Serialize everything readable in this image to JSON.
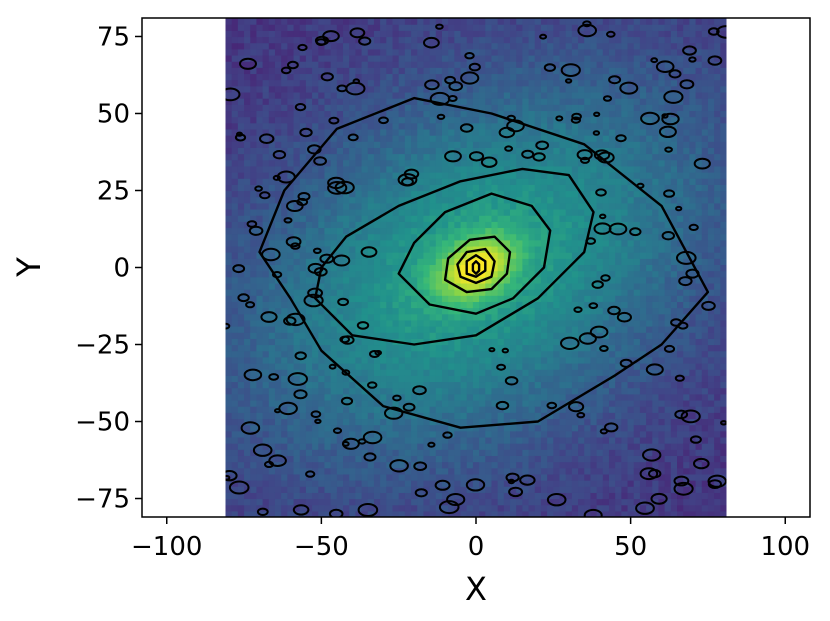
{
  "chart_data": {
    "type": "heatmap",
    "title": "",
    "xlabel": "X",
    "ylabel": "Y",
    "xlim": [
      -108,
      108
    ],
    "ylim": [
      -81,
      81
    ],
    "data_extent": {
      "x": [
        -81,
        81
      ],
      "y": [
        -81,
        81
      ]
    },
    "x_ticks": [
      -100,
      -50,
      0,
      50,
      100
    ],
    "x_tick_labels": [
      "−100",
      "−50",
      "0",
      "50",
      "100"
    ],
    "y_ticks": [
      -75,
      -50,
      -25,
      0,
      25,
      50,
      75
    ],
    "y_tick_labels": [
      "−75",
      "−50",
      "−25",
      "0",
      "25",
      "50",
      "75"
    ],
    "colormap": "viridis",
    "colors": {
      "low": "#440154",
      "mid_low": "#3b528b",
      "mid": "#21918c",
      "mid_high": "#5ec962",
      "high": "#fde725",
      "contour": "#000000"
    },
    "density_model": {
      "description_free": true,
      "center": [
        0,
        0
      ],
      "major_axis_angle_deg": 30,
      "core_scale": [
        9,
        6
      ],
      "halo_scale": [
        48,
        30
      ]
    },
    "contours": [
      {
        "level": 1,
        "x": [
          -50,
          -30,
          -5,
          20,
          45,
          60,
          75,
          60,
          35,
          5,
          -20,
          -45,
          -62,
          -70,
          -60
        ],
        "y": [
          -27,
          -45,
          -52,
          -50,
          -35,
          -25,
          -8,
          20,
          40,
          50,
          55,
          45,
          25,
          5,
          -10
        ]
      },
      {
        "level": 2,
        "x": [
          -52,
          -40,
          -20,
          0,
          20,
          35,
          38,
          30,
          15,
          -5,
          -25,
          -42,
          -50
        ],
        "y": [
          -10,
          -22,
          -25,
          -22,
          -10,
          5,
          18,
          30,
          32,
          28,
          20,
          10,
          0
        ]
      },
      {
        "level": 3,
        "x": [
          -25,
          -15,
          0,
          12,
          22,
          24,
          18,
          5,
          -10,
          -20
        ],
        "y": [
          -2,
          -12,
          -15,
          -10,
          0,
          12,
          20,
          24,
          18,
          8
        ]
      },
      {
        "level": 4,
        "x": [
          -10,
          -3,
          5,
          10,
          11,
          6,
          -2,
          -9
        ],
        "y": [
          -4,
          -8,
          -7,
          -2,
          5,
          10,
          9,
          3
        ]
      },
      {
        "level": 5,
        "x": [
          -5,
          0,
          5,
          6,
          3,
          -3,
          -6
        ],
        "y": [
          -3,
          -5,
          -3,
          2,
          6,
          5,
          1
        ]
      },
      {
        "level": 6,
        "x": [
          -3,
          0,
          3,
          3,
          0,
          -3
        ],
        "y": [
          -2,
          -3,
          -1,
          2,
          4,
          2
        ]
      },
      {
        "level": 7,
        "x": [
          -1,
          0,
          1,
          1,
          0,
          -1
        ],
        "y": [
          -1,
          -2,
          -1,
          1,
          2,
          1
        ]
      }
    ]
  }
}
